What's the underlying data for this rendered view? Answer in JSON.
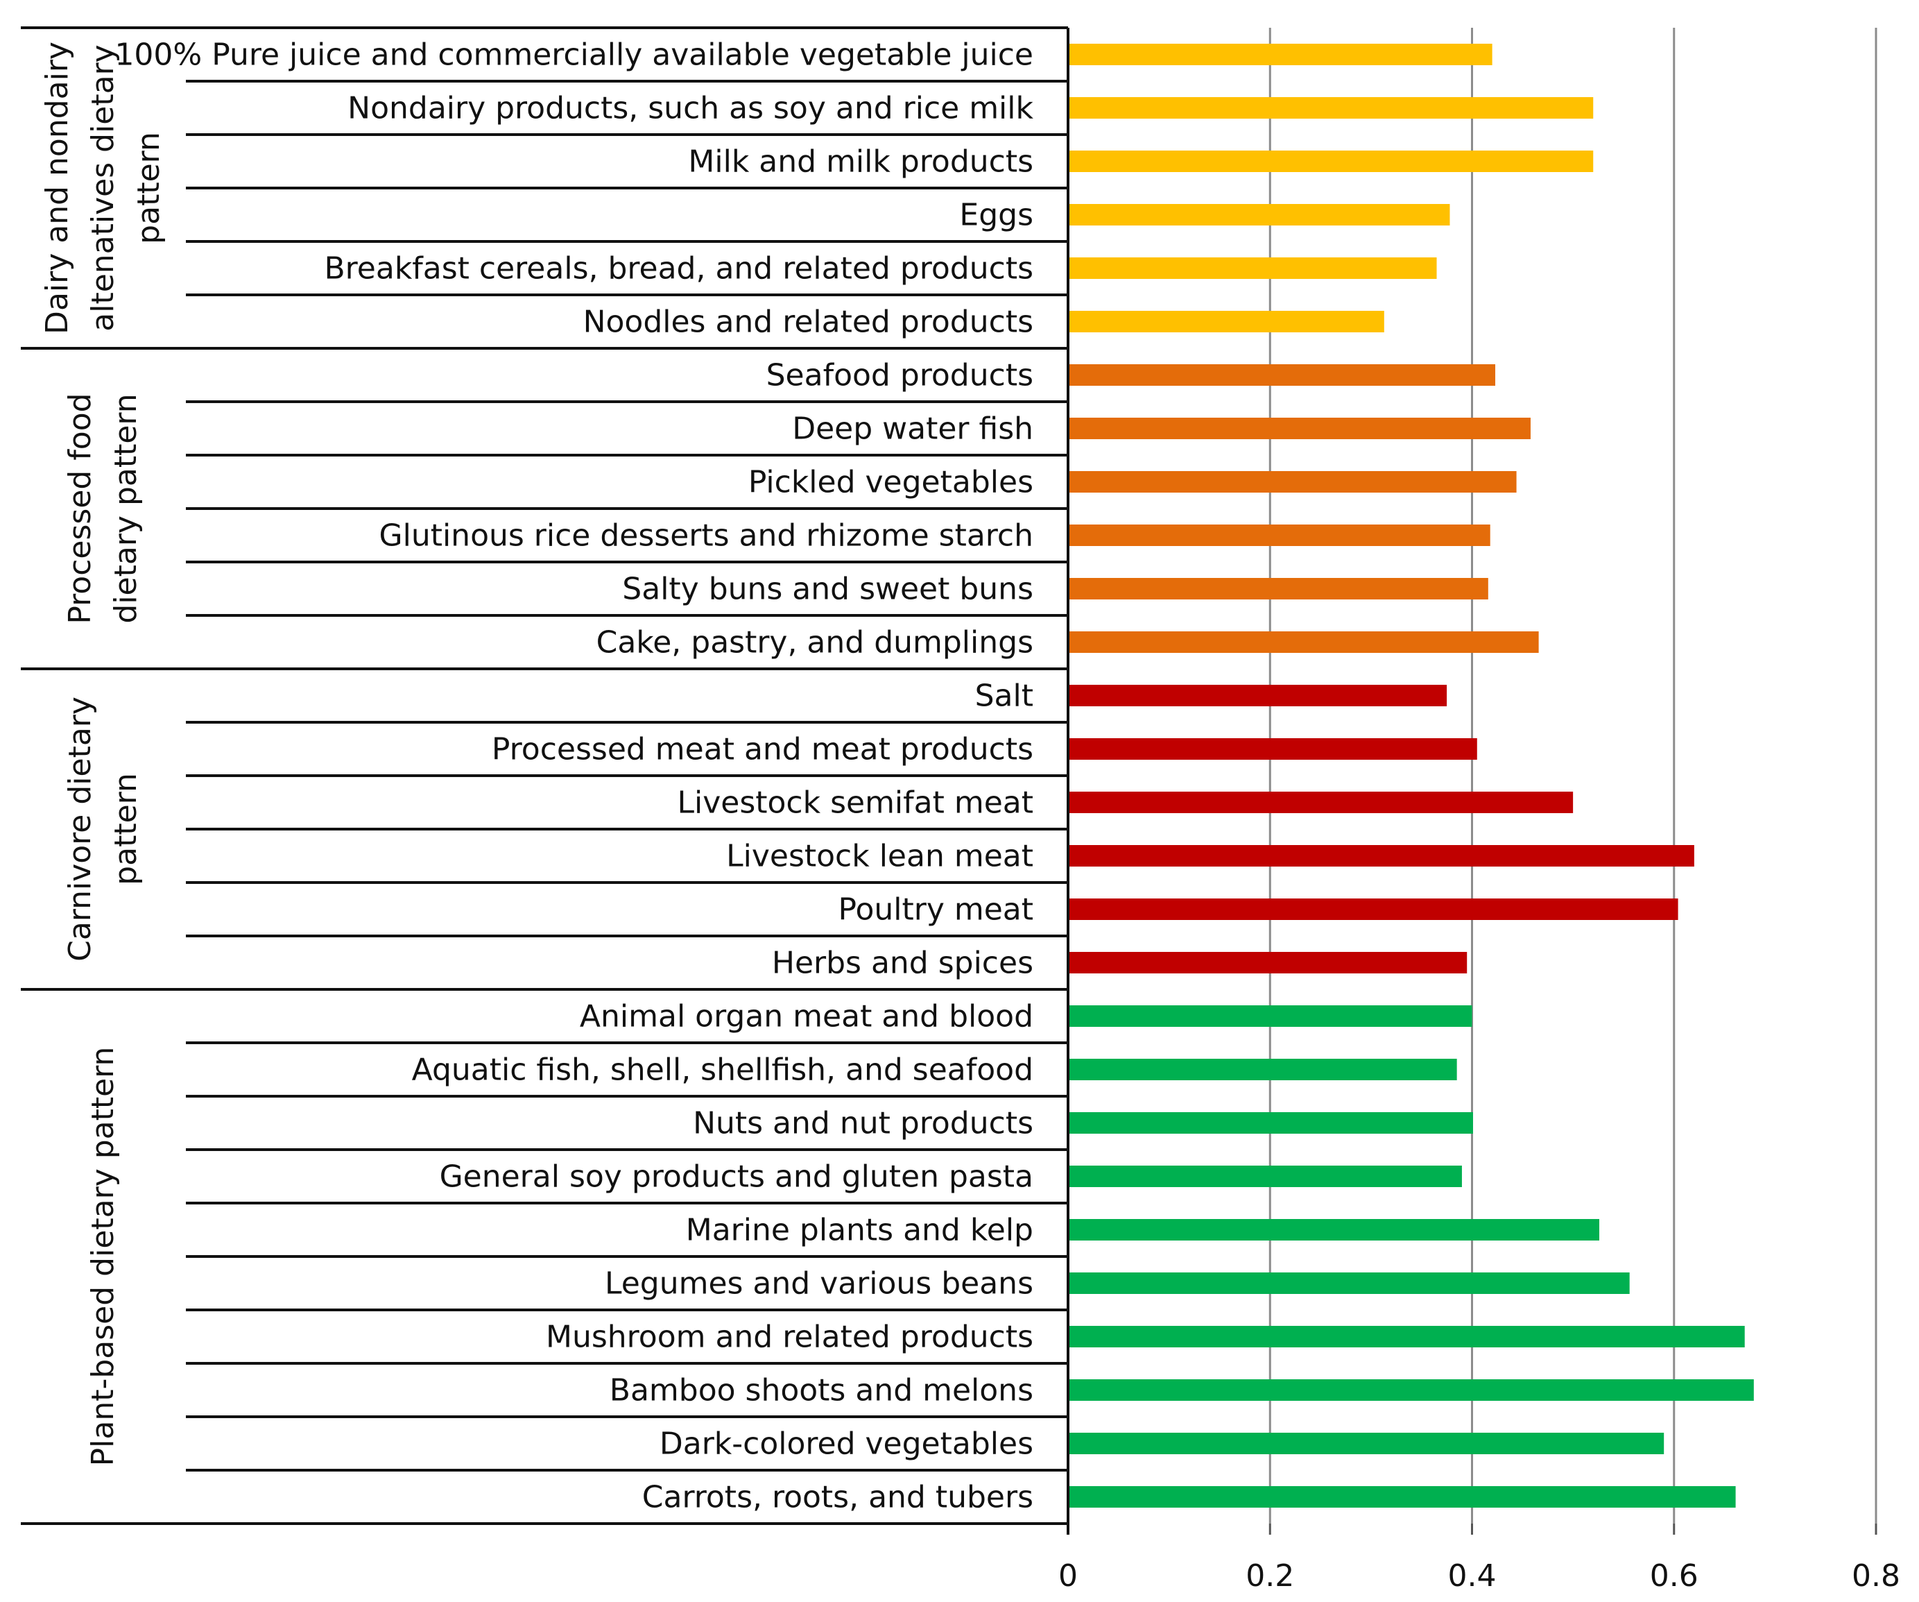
{
  "chart_data": {
    "type": "bar",
    "orientation": "horizontal",
    "title": "",
    "xlabel": "",
    "ylabel": "",
    "xlim": [
      0,
      0.8
    ],
    "xticks": [
      "0",
      "0.2",
      "0.4",
      "0.6",
      "0.8"
    ],
    "grid": true,
    "legend": "none",
    "groups": [
      {
        "name": "Dairy and nondairy altenatives dietary pattern",
        "label_lines": [
          "Dairy and nondairy",
          "altenatives dietary",
          "pattern"
        ],
        "color": "#FFC000",
        "categories": [
          "100% Pure juice and commercially available vegetable juice",
          "Nondairy products, such as soy and rice milk",
          "Milk and milk products",
          "Eggs",
          "Breakfast cereals, bread, and related products",
          "Noodles and related products"
        ],
        "values": [
          0.42,
          0.52,
          0.52,
          0.378,
          0.365,
          0.313
        ]
      },
      {
        "name": "Processed food dietary pattern",
        "label_lines": [
          "Processed food",
          "dietary pattern"
        ],
        "color": "#E46C0A",
        "categories": [
          "Seafood products",
          "Deep water fish",
          "Pickled vegetables",
          "Glutinous rice desserts and rhizome starch",
          "Salty buns and sweet buns",
          "Cake, pastry, and dumplings"
        ],
        "values": [
          0.423,
          0.458,
          0.444,
          0.418,
          0.416,
          0.466
        ]
      },
      {
        "name": "Carnivore dietary pattern",
        "label_lines": [
          "Carnivore dietary",
          "pattern"
        ],
        "color": "#C00000",
        "categories": [
          "Salt",
          "Processed meat and meat products",
          "Livestock semifat meat",
          "Livestock lean meat",
          "Poultry meat",
          "Herbs and spices"
        ],
        "values": [
          0.375,
          0.405,
          0.5,
          0.62,
          0.604,
          0.395
        ]
      },
      {
        "name": "Plant-based dietary pattern",
        "label_lines": [
          "Plant-based dietary pattern"
        ],
        "color": "#00B050",
        "categories": [
          "Animal organ meat and blood",
          "Aquatic fish, shell, shellfish, and seafood",
          "Nuts and nut products",
          "General soy products and gluten pasta",
          "Marine plants and kelp",
          "Legumes and various beans",
          "Mushroom and related products",
          "Bamboo shoots and melons",
          "Dark-colored vegetables",
          "Carrots, roots, and tubers"
        ],
        "values": [
          0.4,
          0.385,
          0.401,
          0.39,
          0.526,
          0.556,
          0.67,
          0.679,
          0.59,
          0.661
        ]
      }
    ]
  }
}
